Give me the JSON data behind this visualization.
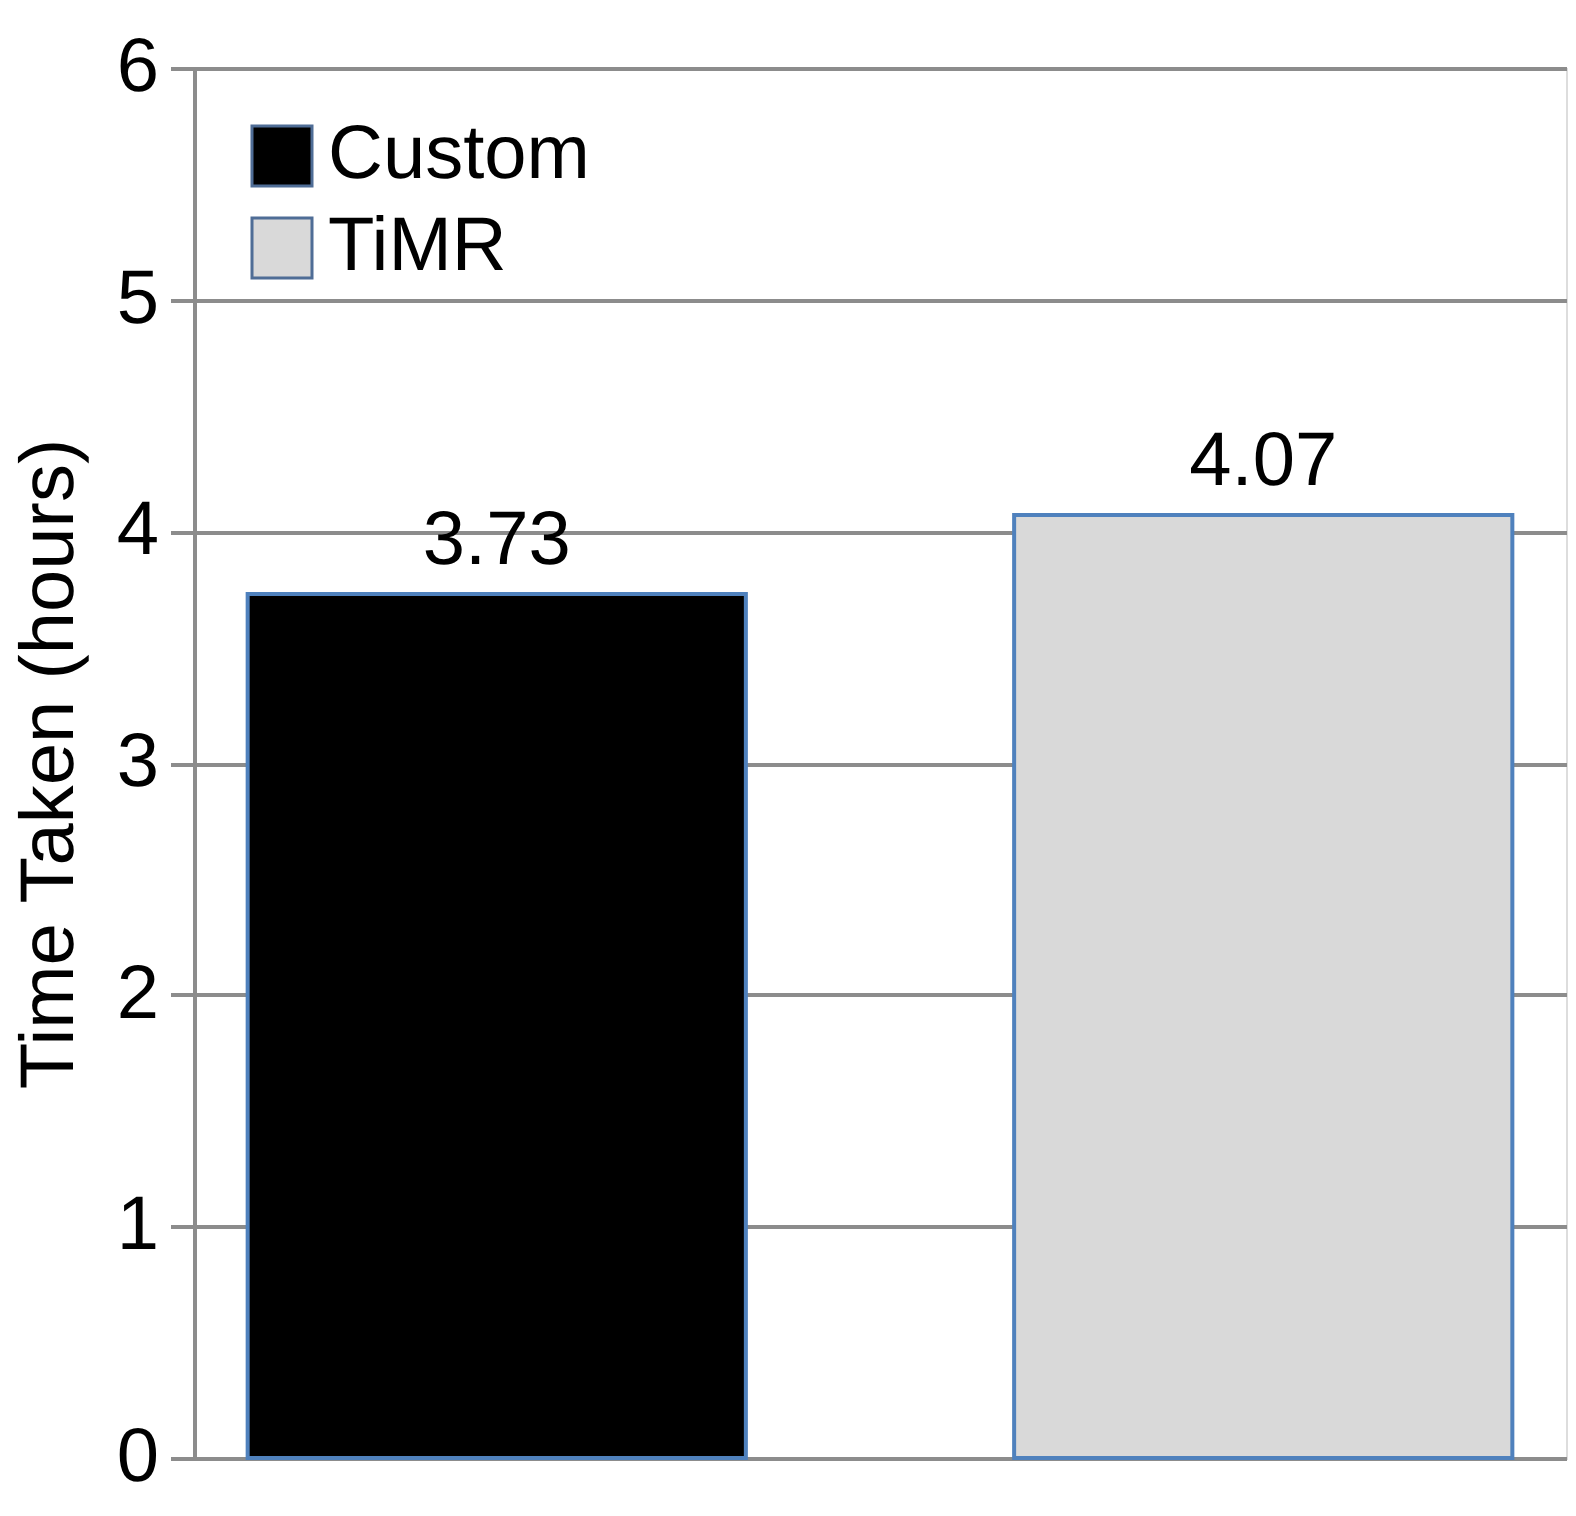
{
  "chart_data": {
    "type": "bar",
    "ylabel": "Time Taken (hours)",
    "categories": [
      null,
      null
    ],
    "series": [
      {
        "name": "Custom",
        "color": "#000000",
        "values": [
          3.73,
          null
        ]
      },
      {
        "name": "TiMR",
        "color": "#d9d9d9",
        "values": [
          null,
          4.07
        ]
      }
    ],
    "ylim": [
      0,
      6
    ],
    "yticks": [
      0,
      1,
      2,
      3,
      4,
      5,
      6
    ],
    "grid": "y",
    "legend": "top left",
    "data_labels": true
  }
}
